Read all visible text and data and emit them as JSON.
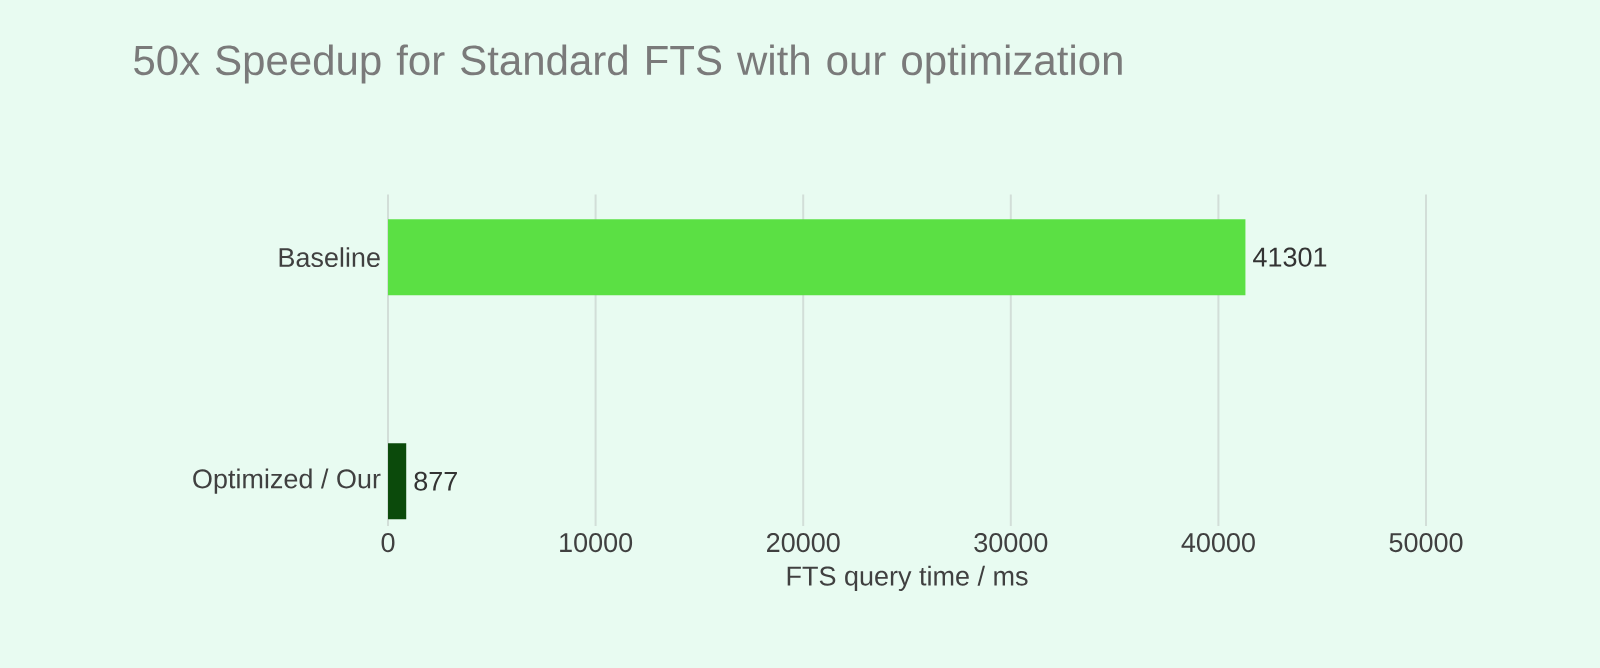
{
  "chart_data": {
    "type": "bar",
    "orientation": "horizontal",
    "title": "50x Speedup for Standard FTS with our optimization",
    "xlabel": "FTS query time / ms",
    "categories": [
      "Baseline",
      "Optimized / Our"
    ],
    "values": [
      41301,
      877
    ],
    "colors": [
      "#5be044",
      "#0b4a0b"
    ],
    "xlim": [
      0,
      50000
    ],
    "xticks": [
      0,
      10000,
      20000,
      30000,
      40000,
      50000
    ],
    "grid": "x",
    "data_labels": true
  }
}
